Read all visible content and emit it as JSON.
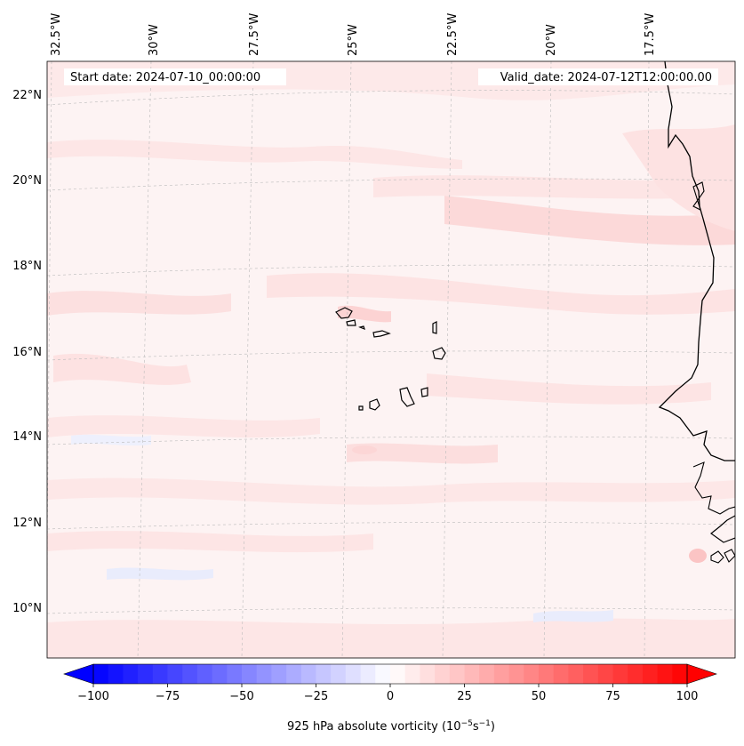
{
  "header": {
    "start_date": "Start date: 2024-07-10_00:00:00",
    "valid_date": "Valid_date: 2024-07-12T12:00:00.00"
  },
  "lon_labels": [
    "32.5°W",
    "30°W",
    "27.5°W",
    "25°W",
    "22.5°W",
    "20°W",
    "17.5°W"
  ],
  "lat_labels": [
    "22°N",
    "20°N",
    "18°N",
    "16°N",
    "14°N",
    "12°N",
    "10°N"
  ],
  "colorbar": {
    "variable_label_prefix": "925 hPa absolute vorticity (10",
    "variable_label_exp1": "−5",
    "variable_label_mid": "s",
    "variable_label_exp2": "−1",
    "variable_label_suffix": ")",
    "min": -100,
    "max": 100,
    "levels": 41,
    "tick_values": [
      -100,
      -75,
      -50,
      -25,
      0,
      25,
      50,
      75,
      100
    ],
    "tick_labels": [
      "−100",
      "−75",
      "−50",
      "−25",
      "0",
      "25",
      "50",
      "75",
      "100"
    ],
    "low_color": "#0000ff",
    "mid_color": "#ffffff",
    "high_color": "#ff0000"
  },
  "colors": {
    "background_field": "#fdf3f3",
    "light_positive": "#fde6e6",
    "moderate_positive": "#fcd8d8",
    "light_negative": "#eef0fd",
    "coastline": "#000000",
    "gridline": "#bbbbbb"
  }
}
